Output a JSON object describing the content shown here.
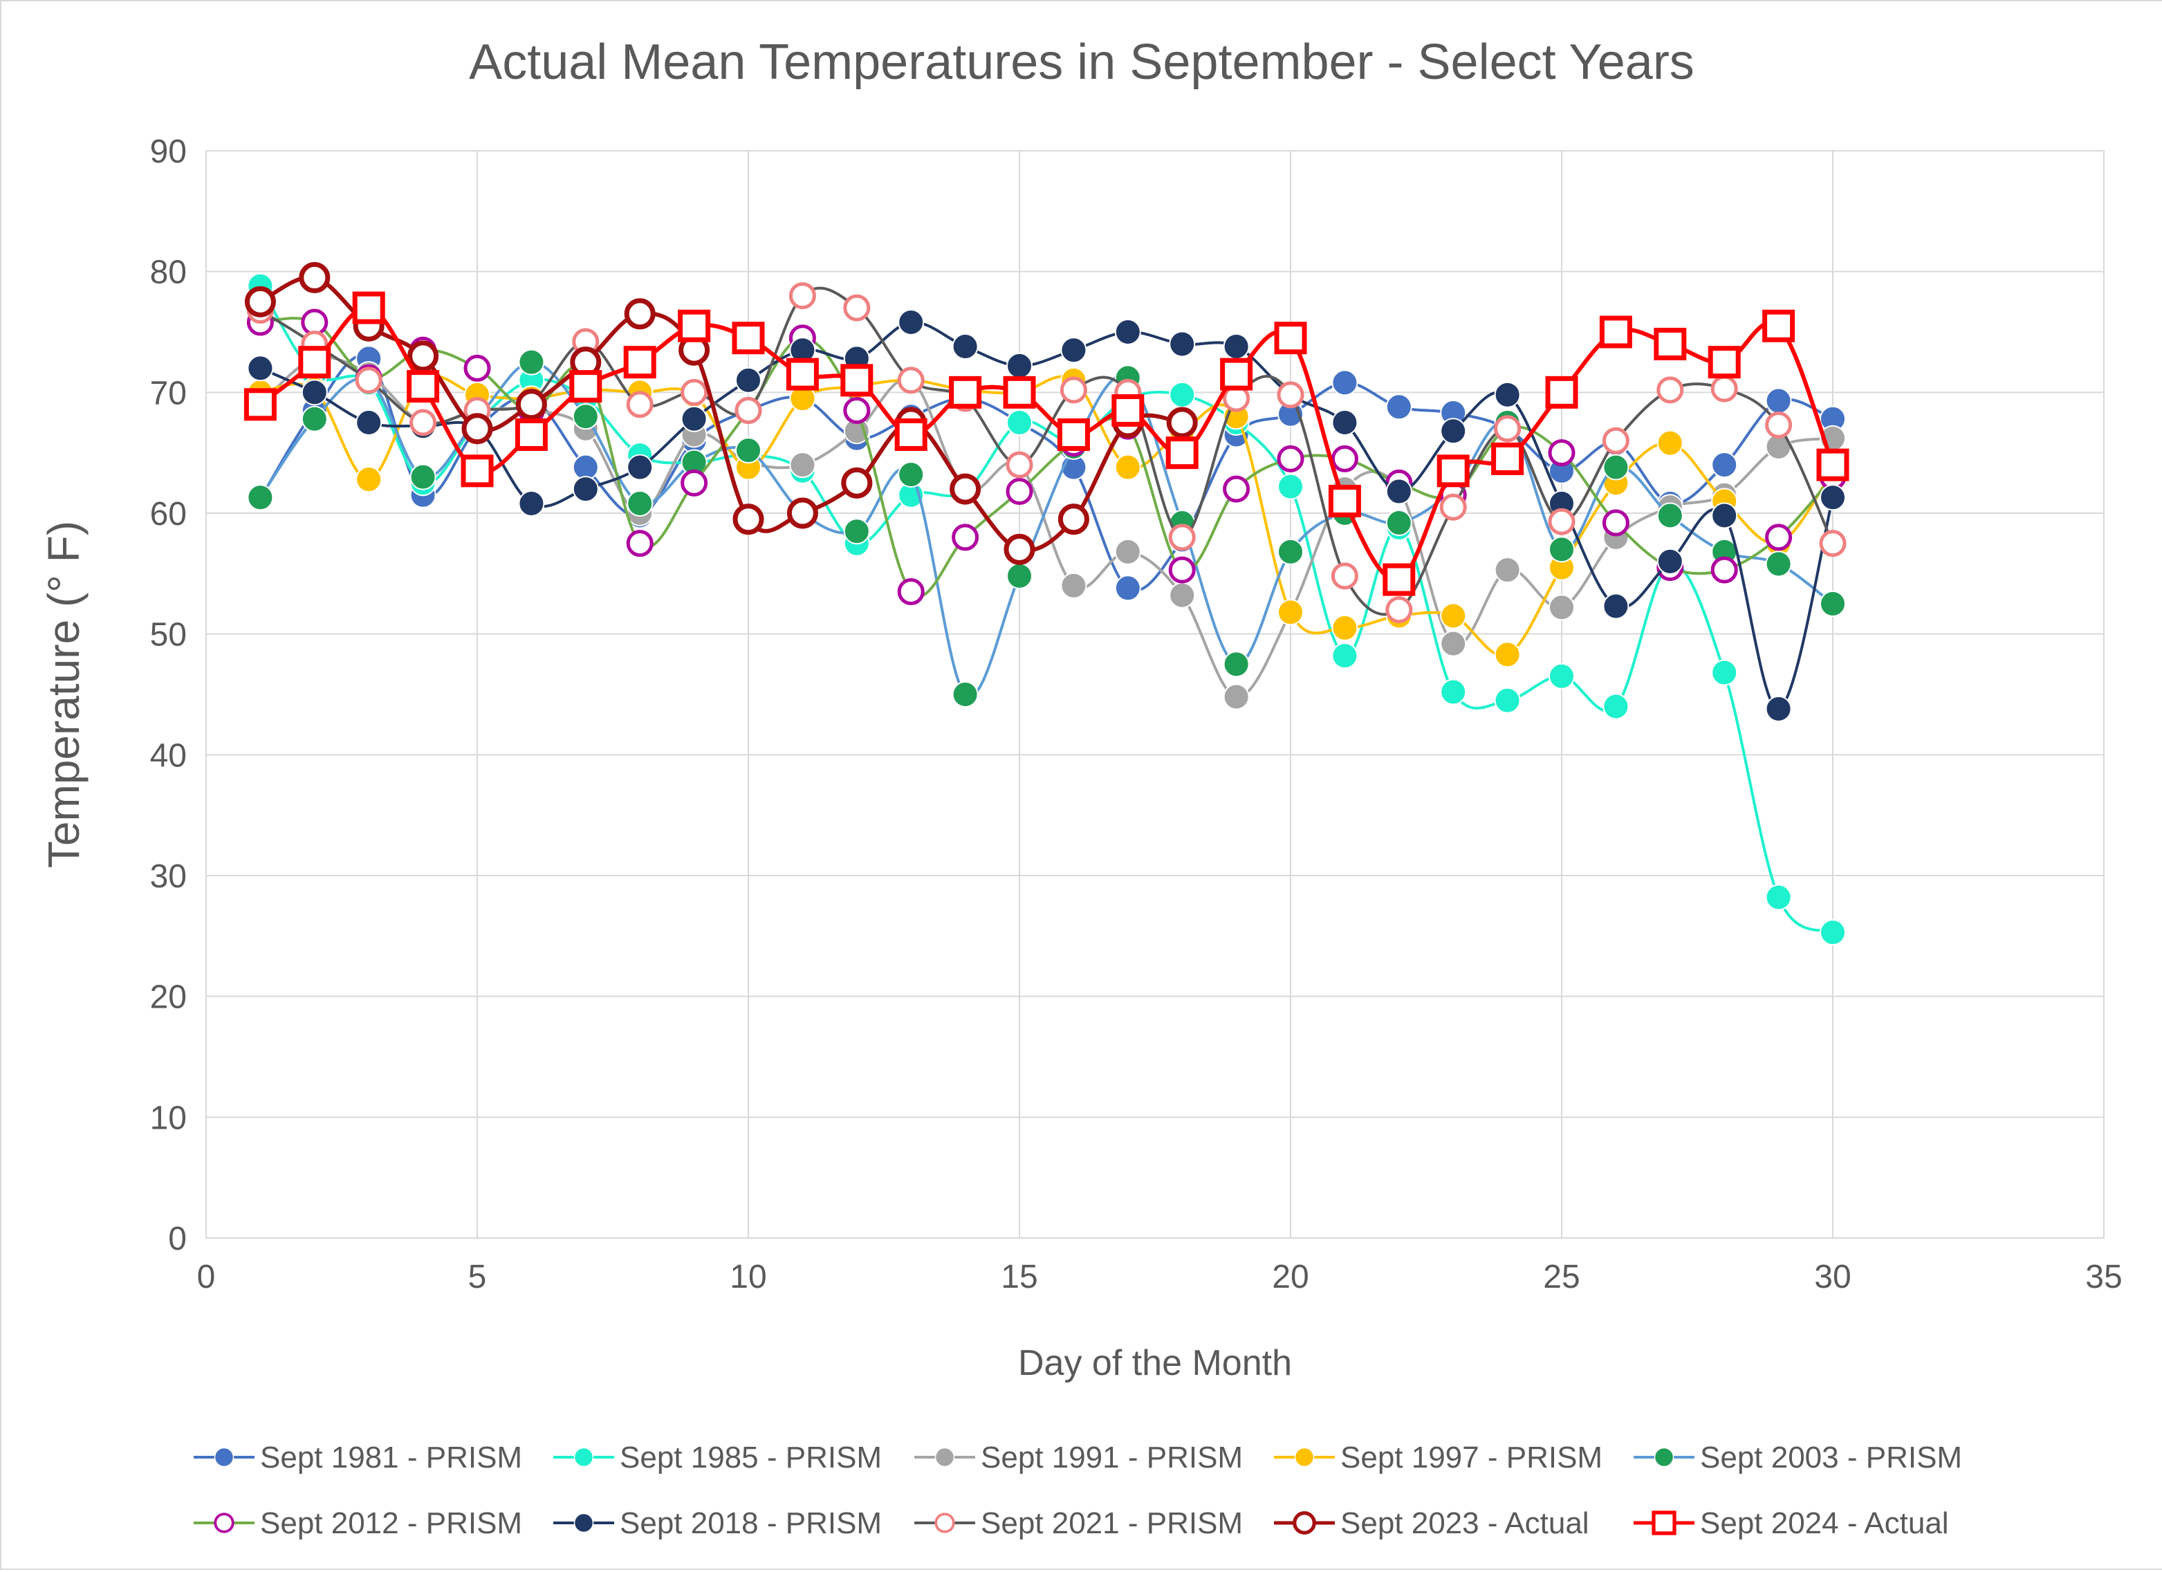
{
  "chart_data": {
    "type": "scatter",
    "title": "Actual Mean Temperatures in September - Select Years",
    "xlabel": "Day of the Month",
    "ylabel": "Temperature (° F)",
    "xlim": [
      0,
      35
    ],
    "ylim": [
      0,
      90
    ],
    "xticks": [
      0,
      5,
      10,
      15,
      20,
      25,
      30,
      35
    ],
    "yticks": [
      0,
      10,
      20,
      30,
      40,
      50,
      60,
      70,
      80,
      90
    ],
    "grid": true,
    "legend_position": "bottom",
    "x": [
      1,
      2,
      3,
      4,
      5,
      6,
      7,
      8,
      9,
      10,
      11,
      12,
      13,
      14,
      15,
      16,
      17,
      18,
      19,
      20,
      21,
      22,
      23,
      24,
      25,
      26,
      27,
      28,
      29,
      30
    ],
    "series": [
      {
        "name": "Sept 1981 - PRISM",
        "color": "#4472C4",
        "marker": "filled-circle",
        "values": [
          61.2,
          68.5,
          72.8,
          61.5,
          67.0,
          69.5,
          63.8,
          59.8,
          66.0,
          68.5,
          69.5,
          66.2,
          68.0,
          69.5,
          67.5,
          63.8,
          53.8,
          57.8,
          66.5,
          68.2,
          70.8,
          68.8,
          68.3,
          67.0,
          63.5,
          65.8,
          60.8,
          64.0,
          69.3,
          67.8
        ]
      },
      {
        "name": "Sept 1985 - PRISM",
        "color": "#1EF1CD",
        "marker": "filled-circle",
        "values": [
          78.8,
          71.5,
          70.8,
          62.5,
          67.5,
          71.0,
          69.5,
          64.8,
          64.2,
          64.8,
          63.5,
          57.5,
          61.5,
          61.8,
          67.5,
          66.0,
          69.5,
          69.8,
          67.5,
          62.2,
          48.2,
          58.8,
          45.2,
          44.5,
          46.5,
          44.0,
          55.8,
          46.8,
          28.2,
          25.3
        ]
      },
      {
        "name": "Sept 1991 - PRISM",
        "color": "#A5A5A5",
        "marker": "filled-circle",
        "values": [
          69.0,
          72.8,
          71.5,
          67.5,
          68.5,
          68.5,
          67.0,
          60.0,
          66.5,
          64.2,
          64.0,
          66.8,
          71.0,
          62.0,
          64.0,
          54.0,
          56.8,
          53.2,
          44.8,
          51.8,
          62.0,
          62.0,
          49.2,
          55.3,
          52.2,
          58.0,
          60.5,
          61.5,
          65.5,
          66.2
        ]
      },
      {
        "name": "Sept 1997 - PRISM",
        "color": "#FFC000",
        "marker": "filled-circle",
        "values": [
          70.0,
          70.2,
          62.8,
          71.0,
          69.8,
          69.5,
          70.2,
          70.0,
          69.8,
          63.8,
          69.5,
          70.5,
          71.0,
          70.2,
          70.0,
          71.0,
          63.8,
          66.8,
          68.0,
          51.8,
          50.5,
          51.5,
          51.5,
          48.3,
          55.5,
          62.5,
          65.8,
          61.0,
          57.5,
          63.5
        ]
      },
      {
        "name": "Sept 2003 - PRISM",
        "color": "#1F9E55",
        "line": "#5B9BD5",
        "marker": "filled-circle",
        "values": [
          61.3,
          67.8,
          71.0,
          63.0,
          67.8,
          72.5,
          68.0,
          60.8,
          64.2,
          65.2,
          60.0,
          58.5,
          63.2,
          45.0,
          54.8,
          65.5,
          71.2,
          59.2,
          47.5,
          56.8,
          60.0,
          59.2,
          62.0,
          67.5,
          57.0,
          63.8,
          59.8,
          56.8,
          55.8,
          52.5
        ]
      },
      {
        "name": "Sept 2012 - PRISM",
        "color": "#B000A0",
        "line": "#70AD47",
        "marker": "hollow-circle",
        "values": [
          75.8,
          75.8,
          71.2,
          73.5,
          72.0,
          68.5,
          71.8,
          57.5,
          62.5,
          68.5,
          74.5,
          68.5,
          53.5,
          58.0,
          61.8,
          65.8,
          67.2,
          55.3,
          62.0,
          64.5,
          64.5,
          62.5,
          61.5,
          67.0,
          65.0,
          59.2,
          55.5,
          55.3,
          58.0,
          63.0
        ]
      },
      {
        "name": "Sept 2018 - PRISM",
        "color": "#203864",
        "marker": "filled-circle",
        "values": [
          72.0,
          70.0,
          67.5,
          67.2,
          67.0,
          60.8,
          62.0,
          63.8,
          67.8,
          71.0,
          73.5,
          72.8,
          75.8,
          73.8,
          72.2,
          73.5,
          75.0,
          74.0,
          73.8,
          69.8,
          67.5,
          61.8,
          66.8,
          69.8,
          60.8,
          52.3,
          56.0,
          59.8,
          43.8,
          61.3
        ]
      },
      {
        "name": "Sept 2021 - PRISM",
        "color": "#F08080",
        "line": "#595959",
        "marker": "hollow-circle",
        "values": [
          76.8,
          74.0,
          71.0,
          67.5,
          68.5,
          69.2,
          74.2,
          69.0,
          70.0,
          68.5,
          78.0,
          77.0,
          71.0,
          69.5,
          64.0,
          70.2,
          70.0,
          58.0,
          69.5,
          69.8,
          54.8,
          52.0,
          60.5,
          67.0,
          59.3,
          66.0,
          70.2,
          70.3,
          67.3,
          57.5
        ]
      },
      {
        "name": "Sept 2023 - Actual",
        "color": "#A50F0F",
        "marker": "hollow-circle-thick",
        "values": [
          77.5,
          79.5,
          75.5,
          73.0,
          67.0,
          69.0,
          72.5,
          76.5,
          73.5,
          59.5,
          60.0,
          62.5,
          67.5,
          62.0,
          57.0,
          59.5,
          67.5,
          67.5
        ]
      },
      {
        "name": "Sept 2024 - Actual",
        "color": "#FF0000",
        "marker": "hollow-square",
        "values": [
          69.0,
          72.5,
          77.0,
          70.5,
          63.5,
          66.5,
          70.5,
          72.5,
          75.5,
          74.5,
          71.5,
          71.0,
          66.5,
          70.0,
          70.0,
          66.5,
          68.5,
          65.0,
          71.5,
          74.5,
          61.0,
          54.5,
          63.5,
          64.5,
          70.0,
          75.0,
          74.0,
          72.5,
          75.5,
          64.0
        ]
      }
    ]
  }
}
